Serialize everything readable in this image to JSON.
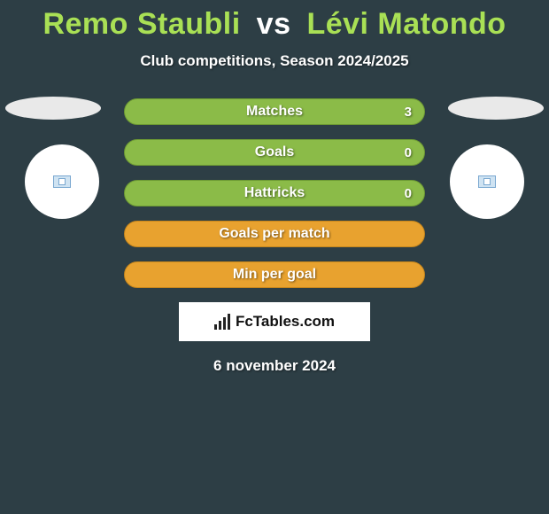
{
  "title": {
    "player1": "Remo Staubli",
    "vs": "vs",
    "player2": "Lévi Matondo",
    "color_players": "#a9e055",
    "color_vs": "#ffffff"
  },
  "subtitle": "Club competitions, Season 2024/2025",
  "stats": [
    {
      "label": "Matches",
      "value": "3",
      "bg": "#8bbb48",
      "border": "#6d9a33",
      "show_value": true
    },
    {
      "label": "Goals",
      "value": "0",
      "bg": "#8bbb48",
      "border": "#6d9a33",
      "show_value": true
    },
    {
      "label": "Hattricks",
      "value": "0",
      "bg": "#8bbb48",
      "border": "#6d9a33",
      "show_value": true
    },
    {
      "label": "Goals per match",
      "value": "",
      "bg": "#e8a22f",
      "border": "#c7861b",
      "show_value": false
    },
    {
      "label": "Min per goal",
      "value": "",
      "bg": "#e8a22f",
      "border": "#c7861b",
      "show_value": false
    }
  ],
  "branding": "FcTables.com",
  "date": "6 november 2024",
  "colors": {
    "background": "#2d3e45",
    "ellipse": "#e9e9e9",
    "circle": "#ffffff"
  }
}
